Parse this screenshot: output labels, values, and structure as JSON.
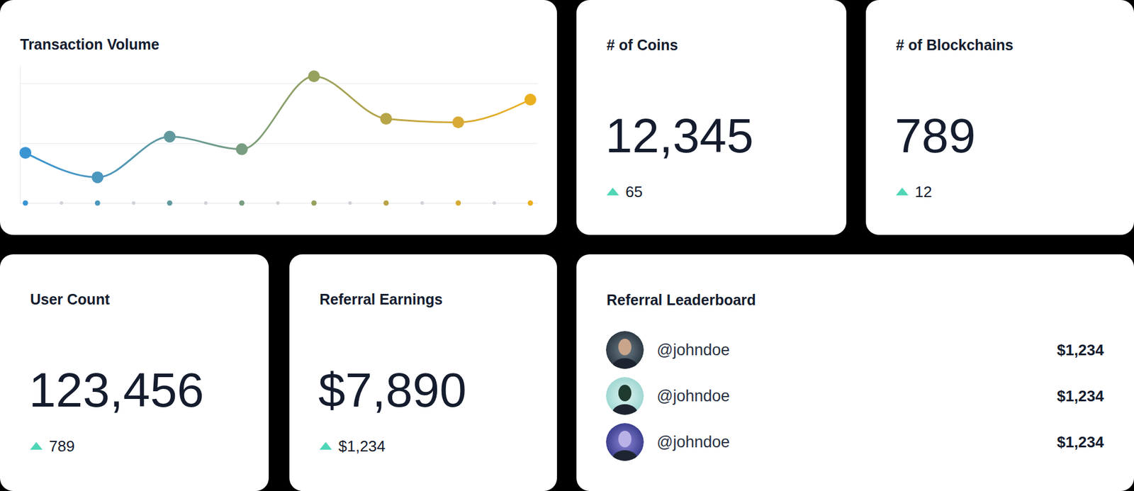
{
  "chart_data": {
    "type": "line",
    "title": "Transaction Volume",
    "categories": [
      null,
      null,
      null,
      null,
      null,
      null,
      null,
      null
    ],
    "series": [
      {
        "values": [
          0.84,
          0.43,
          1.11,
          0.9,
          2.12,
          1.41,
          1.35,
          1.73
        ],
        "colors": [
          "#3a94d2",
          "#4b97bd",
          "#62999e",
          "#789d80",
          "#97a15e",
          "#b8a548",
          "#d6aa35",
          "#ebb021"
        ]
      }
    ],
    "ylim": [
      0,
      2.3
    ],
    "yticks": [
      0,
      1,
      2
    ],
    "grid": true,
    "tick_labels": false,
    "marker": "circle",
    "line_style": "solid"
  },
  "cards": [
    {
      "title": "# of Coins",
      "value": "12,345",
      "change": "65"
    },
    {
      "title": "# of Blockchains",
      "value": "789",
      "change": "12"
    },
    {
      "title": "User Count",
      "value": "123,456",
      "change": "789"
    },
    {
      "title": "Referral Earnings",
      "value": "$7,890",
      "change": "$1,234"
    }
  ],
  "leaderboard": {
    "title": "Referral Leaderboard",
    "rows": [
      {
        "user": "@johndoe",
        "amount": "$1,234"
      },
      {
        "user": "@johndoe",
        "amount": "$1,234"
      },
      {
        "user": "@johndoe",
        "amount": "$1,234"
      }
    ]
  }
}
